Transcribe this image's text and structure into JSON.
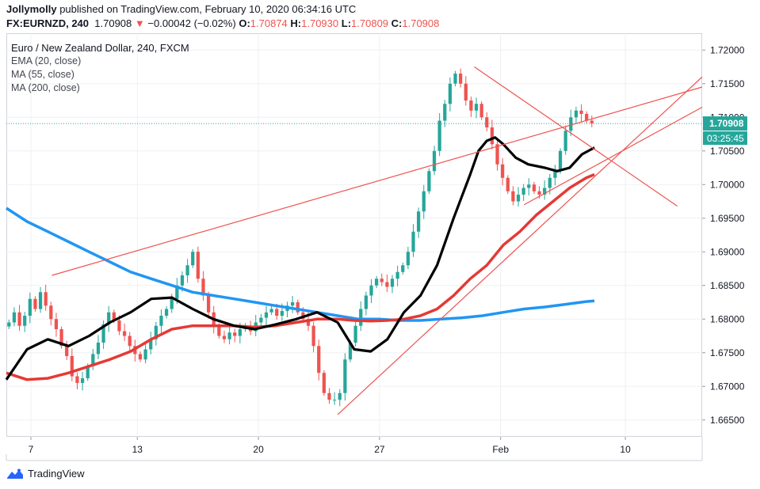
{
  "header": {
    "publisher": "Jollymolly",
    "published_text": " published on TradingView.com, February 10, 2020 06:34:16 UTC",
    "symbol": "FX:EURNZD, 240",
    "last": "1.70908",
    "change": "−0.00042 (−0.02%)",
    "o_label": "O:",
    "o": "1.70874",
    "h_label": "H:",
    "h": "1.70930",
    "l_label": "L:",
    "l": "1.70809",
    "c_label": "C:",
    "c": "1.70908"
  },
  "legend": {
    "title": "Euro / New Zealand Dollar, 240, FXCM",
    "ind1": "EMA (20, close)",
    "ind2": "MA (55, close)",
    "ind3": "MA (200, close)"
  },
  "brand": {
    "name": "TradingView"
  },
  "icons": {
    "brand": "tradingview-logo-icon",
    "down": "down-triangle-icon"
  },
  "colors": {
    "up": "#26a69a",
    "down": "#ef5350",
    "ema20": "#000000",
    "ma55": "#e53935",
    "ma200": "#2196f3",
    "trendline": "#ef5350",
    "price_tag": "#26a69a"
  },
  "chart_data": {
    "type": "candlestick",
    "title": "Euro / New Zealand Dollar, 240, FXCM",
    "x_ticks": [
      "7",
      "13",
      "20",
      "27",
      "Feb",
      "10"
    ],
    "y_ticks": [
      "1.72000",
      "1.71500",
      "1.71000",
      "1.70500",
      "1.70000",
      "1.69500",
      "1.69000",
      "1.68500",
      "1.68000",
      "1.67500",
      "1.67000",
      "1.66500"
    ],
    "ylim": [
      1.6625,
      1.7225
    ],
    "current_price": "1.70908",
    "countdown": "03:25:45",
    "x_index_range": [
      0,
      120
    ],
    "candles_close": [
      1.6795,
      1.681,
      1.679,
      1.6805,
      1.683,
      1.6815,
      1.684,
      1.682,
      1.68,
      1.6785,
      1.676,
      1.6745,
      1.6715,
      1.6705,
      1.6712,
      1.673,
      1.6748,
      1.6765,
      1.6792,
      1.681,
      1.6798,
      1.6782,
      1.6775,
      1.676,
      1.6748,
      1.674,
      1.6755,
      1.677,
      1.679,
      1.6805,
      1.6815,
      1.683,
      1.685,
      1.6865,
      1.688,
      1.69,
      1.686,
      1.6835,
      1.681,
      1.679,
      1.6775,
      1.677,
      1.678,
      1.6775,
      1.6785,
      1.679,
      1.6782,
      1.6795,
      1.6802,
      1.681,
      1.6815,
      1.6805,
      1.6812,
      1.682,
      1.6825,
      1.681,
      1.68,
      1.679,
      1.676,
      1.672,
      1.669,
      1.668,
      1.668,
      1.669,
      1.674,
      1.6765,
      1.679,
      1.6815,
      1.6835,
      1.685,
      1.686,
      1.6855,
      1.6848,
      1.686,
      1.687,
      1.688,
      1.69,
      1.693,
      1.696,
      1.699,
      1.702,
      1.705,
      1.7095,
      1.712,
      1.715,
      1.7165,
      1.715,
      1.7125,
      1.711,
      1.712,
      1.71,
      1.7085,
      1.706,
      1.703,
      1.701,
      1.699,
      1.6975,
      1.6985,
      1.6995,
      1.7,
      1.699,
      1.6985,
      1.6995,
      1.701,
      1.702,
      1.705,
      1.708,
      1.71,
      1.711,
      1.7105,
      1.7095,
      1.7091
    ],
    "ema20": [
      [
        0,
        1.671
      ],
      [
        5,
        1.6755
      ],
      [
        10,
        1.677
      ],
      [
        15,
        1.676
      ],
      [
        20,
        1.6775
      ],
      [
        25,
        1.6795
      ],
      [
        30,
        1.681
      ],
      [
        35,
        1.683
      ],
      [
        40,
        1.6832
      ],
      [
        45,
        1.6815
      ],
      [
        50,
        1.68
      ],
      [
        55,
        1.679
      ],
      [
        60,
        1.6785
      ],
      [
        65,
        1.6792
      ],
      [
        70,
        1.68
      ],
      [
        75,
        1.681
      ],
      [
        80,
        1.6795
      ],
      [
        84,
        1.6755
      ],
      [
        88,
        1.6752
      ],
      [
        92,
        1.677
      ],
      [
        96,
        1.681
      ],
      [
        100,
        1.6835
      ],
      [
        104,
        1.688
      ],
      [
        108,
        1.695
      ],
      [
        112,
        1.7015
      ],
      [
        114,
        1.705
      ],
      [
        116,
        1.7065
      ],
      [
        118,
        1.707
      ],
      [
        120,
        1.706
      ],
      [
        123,
        1.704
      ],
      [
        126,
        1.703
      ],
      [
        130,
        1.7025
      ],
      [
        133,
        1.702
      ],
      [
        136,
        1.7025
      ],
      [
        139,
        1.7045
      ],
      [
        142,
        1.7055
      ]
    ],
    "ma55": [
      [
        0,
        1.672
      ],
      [
        5,
        1.671
      ],
      [
        10,
        1.6712
      ],
      [
        15,
        1.672
      ],
      [
        20,
        1.673
      ],
      [
        25,
        1.674
      ],
      [
        30,
        1.6752
      ],
      [
        35,
        1.677
      ],
      [
        40,
        1.6785
      ],
      [
        45,
        1.679
      ],
      [
        50,
        1.679
      ],
      [
        55,
        1.679
      ],
      [
        60,
        1.6788
      ],
      [
        65,
        1.679
      ],
      [
        70,
        1.6795
      ],
      [
        75,
        1.68
      ],
      [
        80,
        1.68
      ],
      [
        84,
        1.6798
      ],
      [
        88,
        1.6797
      ],
      [
        92,
        1.6798
      ],
      [
        96,
        1.68
      ],
      [
        100,
        1.6805
      ],
      [
        104,
        1.6815
      ],
      [
        108,
        1.6835
      ],
      [
        112,
        1.686
      ],
      [
        116,
        1.688
      ],
      [
        120,
        1.691
      ],
      [
        124,
        1.693
      ],
      [
        128,
        1.6955
      ],
      [
        132,
        1.6975
      ],
      [
        136,
        1.6995
      ],
      [
        140,
        1.701
      ],
      [
        142,
        1.7015
      ]
    ],
    "ma200": [
      [
        0,
        1.6965
      ],
      [
        5,
        1.6945
      ],
      [
        10,
        1.693
      ],
      [
        15,
        1.6915
      ],
      [
        20,
        1.69
      ],
      [
        25,
        1.6885
      ],
      [
        30,
        1.687
      ],
      [
        35,
        1.686
      ],
      [
        40,
        1.685
      ],
      [
        45,
        1.684
      ],
      [
        50,
        1.6835
      ],
      [
        55,
        1.683
      ],
      [
        60,
        1.6825
      ],
      [
        65,
        1.682
      ],
      [
        70,
        1.6815
      ],
      [
        75,
        1.681
      ],
      [
        80,
        1.6805
      ],
      [
        85,
        1.68
      ],
      [
        90,
        1.68
      ],
      [
        95,
        1.6798
      ],
      [
        100,
        1.6798
      ],
      [
        105,
        1.68
      ],
      [
        110,
        1.6802
      ],
      [
        115,
        1.6805
      ],
      [
        120,
        1.681
      ],
      [
        125,
        1.6815
      ],
      [
        130,
        1.6818
      ],
      [
        135,
        1.6822
      ],
      [
        140,
        1.6826
      ],
      [
        142,
        1.6827
      ]
    ],
    "trendlines": [
      {
        "from": [
          11,
          1.6865
        ],
        "to": [
          168,
          1.7145
        ]
      },
      {
        "from": [
          80,
          1.6658
        ],
        "to": [
          168,
          1.716
        ]
      },
      {
        "from": [
          113,
          1.7175
        ],
        "to": [
          162,
          1.6968
        ]
      },
      {
        "from": [
          125,
          1.697
        ],
        "to": [
          168,
          1.7115
        ]
      }
    ]
  }
}
